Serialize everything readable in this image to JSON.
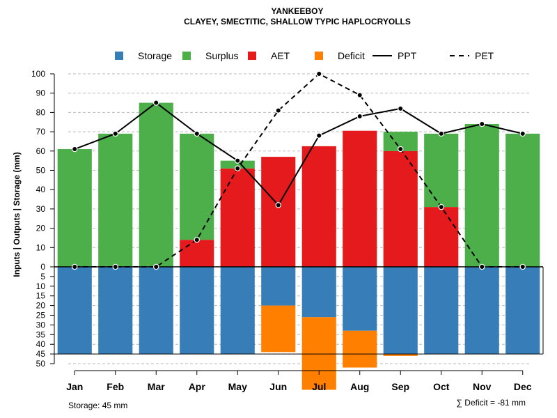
{
  "chart_data": {
    "type": "bar",
    "title": "YANKEEBOY",
    "subtitle": "CLAYEY, SMECTITIC, SHALLOW TYPIC HAPLOCRYOLLS",
    "ylabel": "Inputs | Outputs | Storage    (mm)",
    "categories": [
      "Jan",
      "Feb",
      "Mar",
      "Apr",
      "May",
      "Jun",
      "Jul",
      "Aug",
      "Sep",
      "Oct",
      "Nov",
      "Dec"
    ],
    "upper_ylim": [
      0,
      100
    ],
    "upper_ticks": [
      0,
      10,
      20,
      30,
      40,
      50,
      60,
      70,
      80,
      90,
      100
    ],
    "lower_ylim": [
      0,
      50
    ],
    "lower_ticks": [
      0,
      5,
      10,
      15,
      20,
      25,
      30,
      35,
      40,
      45,
      50
    ],
    "storage_capacity": 45,
    "series": [
      {
        "name": "Storage",
        "color": "#377EB8",
        "values": [
          45,
          45,
          45,
          45,
          45,
          20,
          26,
          33,
          45,
          45,
          45,
          45
        ]
      },
      {
        "name": "Surplus",
        "color": "#4DAF4A",
        "values": [
          61,
          69,
          85,
          55,
          4,
          0,
          0,
          0,
          10,
          38,
          74,
          69
        ]
      },
      {
        "name": "AET",
        "color": "#E41A1C",
        "values": [
          0,
          0,
          0,
          14,
          51,
          57,
          62.5,
          70.5,
          60,
          31,
          0,
          0
        ]
      },
      {
        "name": "Deficit",
        "color": "#FF7F00",
        "values": [
          0,
          0,
          0,
          0,
          0,
          24,
          37.5,
          19,
          1,
          0,
          0,
          0
        ]
      },
      {
        "name": "PPT",
        "color": "#000000",
        "values": [
          61,
          69,
          85,
          69,
          55,
          32,
          68,
          78,
          82,
          69,
          74,
          69
        ]
      },
      {
        "name": "PET",
        "color": "#000000",
        "values": [
          0,
          0,
          0,
          14,
          51,
          81,
          100,
          89,
          61,
          31,
          0,
          0
        ]
      }
    ],
    "legend": {
      "position": "top",
      "items": [
        {
          "label": "Storage",
          "kind": "box",
          "color": "#377EB8"
        },
        {
          "label": "Surplus",
          "kind": "box",
          "color": "#4DAF4A"
        },
        {
          "label": "AET",
          "kind": "box",
          "color": "#E41A1C"
        },
        {
          "label": "Deficit",
          "kind": "box",
          "color": "#FF7F00"
        },
        {
          "label": "PPT",
          "kind": "solid-line",
          "color": "#000000"
        },
        {
          "label": "PET",
          "kind": "dashed-line",
          "color": "#000000"
        }
      ]
    },
    "grid": true,
    "storage_note": "Storage: 45 mm",
    "deficit_note": "∑ Deficit = -81 mm"
  }
}
